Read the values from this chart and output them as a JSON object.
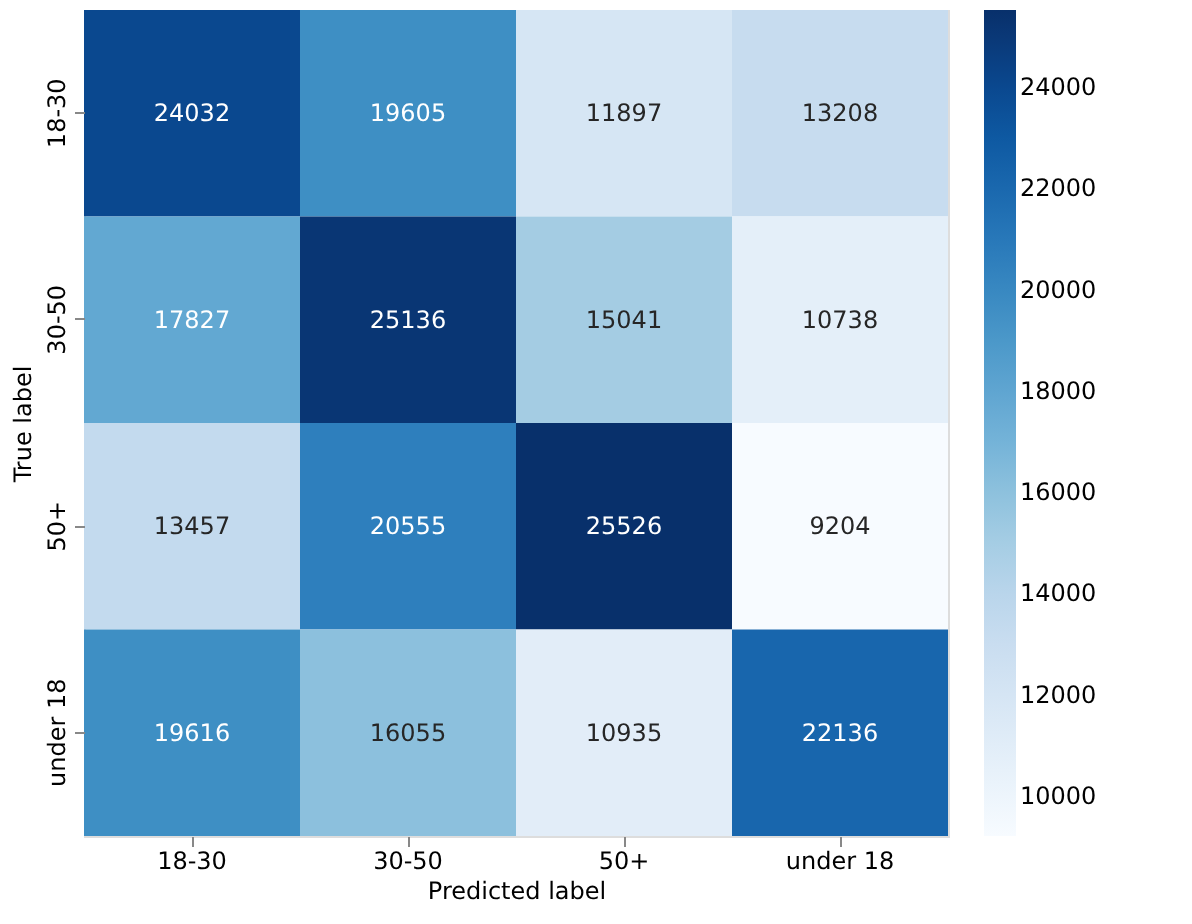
{
  "chart_data": {
    "type": "heatmap",
    "xlabel": "Predicted label",
    "ylabel": "True label",
    "categories": [
      "18-30",
      "30-50",
      "50+",
      "under 18"
    ],
    "y_categories": [
      "18-30",
      "30-50",
      "50+",
      "under 18"
    ],
    "cells": [
      [
        24032,
        19605,
        11897,
        13208
      ],
      [
        17827,
        25136,
        15041,
        10738
      ],
      [
        13457,
        20555,
        25526,
        9204
      ],
      [
        19616,
        16055,
        10935,
        22136
      ]
    ],
    "data_labels": true,
    "clim": [
      9204,
      25526
    ],
    "cticks": [
      10000,
      12000,
      14000,
      16000,
      18000,
      20000,
      22000,
      24000
    ]
  }
}
